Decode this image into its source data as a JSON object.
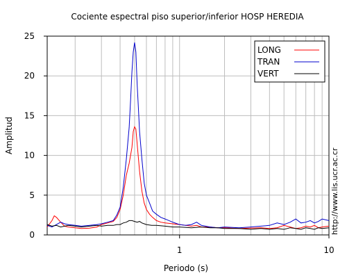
{
  "chart_data": {
    "type": "line",
    "title": "Cociente espectral piso superior/inferior  HOSP HEREDIA",
    "xlabel": "Periodo (s)",
    "ylabel": "Amplitud",
    "xscale": "log",
    "xlim": [
      0.13,
      10
    ],
    "ylim": [
      0,
      25
    ],
    "xticks": [
      {
        "value": 1,
        "label": "1"
      },
      {
        "value": 10,
        "label": "10"
      }
    ],
    "yticks": [
      {
        "value": 0,
        "label": "0"
      },
      {
        "value": 5,
        "label": "5"
      },
      {
        "value": 10,
        "label": "10"
      },
      {
        "value": 15,
        "label": "15"
      },
      {
        "value": 20,
        "label": "20"
      },
      {
        "value": 25,
        "label": "25"
      }
    ],
    "grid": true,
    "legend_position": "top-right",
    "series": [
      {
        "name": "LONG",
        "color": "#ff0000",
        "points": [
          [
            0.13,
            1.0
          ],
          [
            0.14,
            1.8
          ],
          [
            0.145,
            2.4
          ],
          [
            0.15,
            2.2
          ],
          [
            0.16,
            1.6
          ],
          [
            0.17,
            1.1
          ],
          [
            0.18,
            1.0
          ],
          [
            0.2,
            0.9
          ],
          [
            0.22,
            0.8
          ],
          [
            0.25,
            0.85
          ],
          [
            0.28,
            1.0
          ],
          [
            0.3,
            1.3
          ],
          [
            0.33,
            1.5
          ],
          [
            0.36,
            1.7
          ],
          [
            0.38,
            2.2
          ],
          [
            0.4,
            3.2
          ],
          [
            0.42,
            5.0
          ],
          [
            0.44,
            7.5
          ],
          [
            0.46,
            9.0
          ],
          [
            0.48,
            11.0
          ],
          [
            0.49,
            13.0
          ],
          [
            0.5,
            13.6
          ],
          [
            0.51,
            13.3
          ],
          [
            0.52,
            11.5
          ],
          [
            0.54,
            8.0
          ],
          [
            0.56,
            5.5
          ],
          [
            0.58,
            4.0
          ],
          [
            0.6,
            3.2
          ],
          [
            0.63,
            2.6
          ],
          [
            0.66,
            2.2
          ],
          [
            0.7,
            1.8
          ],
          [
            0.75,
            1.6
          ],
          [
            0.8,
            1.5
          ],
          [
            0.9,
            1.4
          ],
          [
            1.0,
            1.3
          ],
          [
            1.1,
            1.2
          ],
          [
            1.2,
            1.1
          ],
          [
            1.3,
            1.2
          ],
          [
            1.4,
            1.0
          ],
          [
            1.6,
            1.0
          ],
          [
            1.8,
            0.9
          ],
          [
            2.0,
            0.9
          ],
          [
            2.5,
            0.8
          ],
          [
            3.0,
            0.85
          ],
          [
            3.5,
            0.9
          ],
          [
            4.0,
            0.8
          ],
          [
            4.5,
            0.9
          ],
          [
            5.0,
            1.2
          ],
          [
            5.5,
            1.0
          ],
          [
            6.0,
            0.8
          ],
          [
            6.5,
            0.9
          ],
          [
            7.0,
            1.1
          ],
          [
            7.5,
            1.0
          ],
          [
            8.0,
            1.2
          ],
          [
            8.5,
            0.9
          ],
          [
            9.0,
            1.0
          ],
          [
            10.0,
            1.1
          ]
        ]
      },
      {
        "name": "TRAN",
        "color": "#0000cc",
        "points": [
          [
            0.13,
            1.2
          ],
          [
            0.14,
            1.0
          ],
          [
            0.15,
            1.3
          ],
          [
            0.16,
            1.6
          ],
          [
            0.17,
            1.4
          ],
          [
            0.18,
            1.3
          ],
          [
            0.2,
            1.2
          ],
          [
            0.22,
            1.1
          ],
          [
            0.25,
            1.2
          ],
          [
            0.28,
            1.3
          ],
          [
            0.3,
            1.4
          ],
          [
            0.33,
            1.6
          ],
          [
            0.36,
            1.8
          ],
          [
            0.38,
            2.5
          ],
          [
            0.4,
            3.5
          ],
          [
            0.42,
            6.0
          ],
          [
            0.44,
            9.5
          ],
          [
            0.46,
            13.5
          ],
          [
            0.47,
            17.0
          ],
          [
            0.48,
            20.5
          ],
          [
            0.49,
            23.0
          ],
          [
            0.5,
            24.2
          ],
          [
            0.51,
            23.0
          ],
          [
            0.52,
            19.0
          ],
          [
            0.53,
            16.0
          ],
          [
            0.54,
            13.0
          ],
          [
            0.56,
            9.5
          ],
          [
            0.58,
            6.5
          ],
          [
            0.6,
            5.0
          ],
          [
            0.63,
            4.0
          ],
          [
            0.66,
            3.0
          ],
          [
            0.7,
            2.6
          ],
          [
            0.75,
            2.2
          ],
          [
            0.8,
            2.0
          ],
          [
            0.9,
            1.6
          ],
          [
            1.0,
            1.3
          ],
          [
            1.1,
            1.2
          ],
          [
            1.2,
            1.3
          ],
          [
            1.3,
            1.6
          ],
          [
            1.4,
            1.2
          ],
          [
            1.6,
            1.0
          ],
          [
            1.8,
            0.9
          ],
          [
            2.0,
            1.0
          ],
          [
            2.5,
            0.9
          ],
          [
            3.0,
            1.0
          ],
          [
            3.5,
            1.1
          ],
          [
            4.0,
            1.2
          ],
          [
            4.5,
            1.5
          ],
          [
            5.0,
            1.3
          ],
          [
            5.5,
            1.6
          ],
          [
            6.0,
            2.0
          ],
          [
            6.5,
            1.5
          ],
          [
            7.0,
            1.6
          ],
          [
            7.5,
            1.8
          ],
          [
            8.0,
            1.5
          ],
          [
            8.5,
            1.7
          ],
          [
            9.0,
            2.0
          ],
          [
            10.0,
            1.8
          ]
        ]
      },
      {
        "name": "VERT",
        "color": "#000000",
        "points": [
          [
            0.13,
            1.3
          ],
          [
            0.14,
            1.1
          ],
          [
            0.15,
            1.2
          ],
          [
            0.16,
            1.0
          ],
          [
            0.17,
            1.1
          ],
          [
            0.18,
            1.2
          ],
          [
            0.2,
            1.1
          ],
          [
            0.22,
            1.0
          ],
          [
            0.25,
            1.1
          ],
          [
            0.28,
            1.2
          ],
          [
            0.3,
            1.1
          ],
          [
            0.33,
            1.2
          ],
          [
            0.36,
            1.2
          ],
          [
            0.38,
            1.3
          ],
          [
            0.4,
            1.3
          ],
          [
            0.42,
            1.5
          ],
          [
            0.44,
            1.6
          ],
          [
            0.46,
            1.8
          ],
          [
            0.48,
            1.8
          ],
          [
            0.5,
            1.7
          ],
          [
            0.52,
            1.6
          ],
          [
            0.54,
            1.7
          ],
          [
            0.56,
            1.5
          ],
          [
            0.58,
            1.4
          ],
          [
            0.6,
            1.3
          ],
          [
            0.65,
            1.2
          ],
          [
            0.7,
            1.2
          ],
          [
            0.8,
            1.1
          ],
          [
            0.9,
            1.0
          ],
          [
            1.0,
            1.0
          ],
          [
            1.2,
            0.9
          ],
          [
            1.4,
            1.0
          ],
          [
            1.6,
            0.9
          ],
          [
            1.8,
            0.9
          ],
          [
            2.0,
            0.8
          ],
          [
            2.5,
            0.8
          ],
          [
            3.0,
            0.7
          ],
          [
            3.5,
            0.8
          ],
          [
            4.0,
            0.7
          ],
          [
            4.5,
            0.8
          ],
          [
            5.0,
            0.7
          ],
          [
            5.5,
            0.9
          ],
          [
            6.0,
            0.8
          ],
          [
            6.5,
            0.7
          ],
          [
            7.0,
            0.9
          ],
          [
            7.5,
            0.8
          ],
          [
            8.0,
            0.7
          ],
          [
            8.5,
            0.9
          ],
          [
            9.0,
            0.8
          ],
          [
            10.0,
            0.9
          ]
        ]
      }
    ]
  },
  "side_text": "http://www.lis.ucr.ac.cr"
}
